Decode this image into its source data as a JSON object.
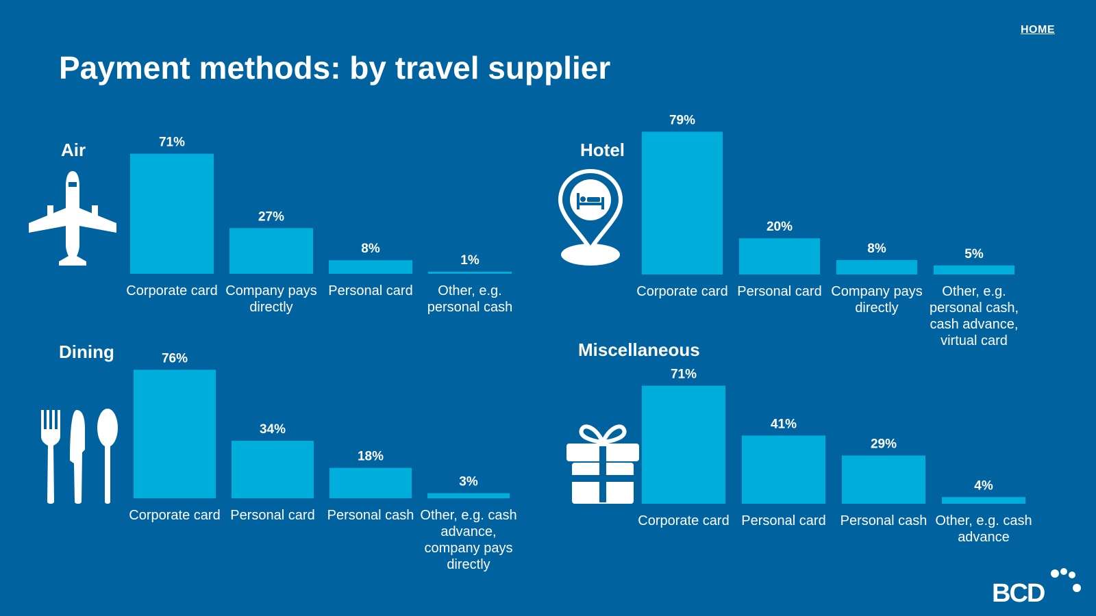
{
  "header": {
    "title": "Payment methods: by travel supplier",
    "home_label": "HOME"
  },
  "colors": {
    "background": "#00629f",
    "bar": "#00aedb",
    "text": "#ffffff"
  },
  "logo": {
    "text": "BCD"
  },
  "chart_data": [
    {
      "type": "bar",
      "title": "Air",
      "icon": "airplane-icon",
      "categories": [
        "Corporate card",
        "Company pays directly",
        "Personal card",
        "Other, e.g. personal cash"
      ],
      "values": [
        71,
        27,
        8,
        1
      ],
      "value_labels": [
        "71%",
        "27%",
        "8%",
        "1%"
      ],
      "ylim": [
        0,
        100
      ]
    },
    {
      "type": "bar",
      "title": "Hotel",
      "icon": "hotel-pin-icon",
      "categories": [
        "Corporate card",
        "Personal card",
        "Company pays directly",
        "Other, e.g. personal cash, cash advance, virtual card"
      ],
      "values": [
        79,
        20,
        8,
        5
      ],
      "value_labels": [
        "79%",
        "20%",
        "8%",
        "5%"
      ],
      "ylim": [
        0,
        100
      ]
    },
    {
      "type": "bar",
      "title": "Dining",
      "icon": "cutlery-icon",
      "categories": [
        "Corporate card",
        "Personal card",
        "Personal cash",
        "Other, e.g. cash advance, company pays directly"
      ],
      "values": [
        76,
        34,
        18,
        3
      ],
      "value_labels": [
        "76%",
        "34%",
        "18%",
        "3%"
      ],
      "ylim": [
        0,
        100
      ]
    },
    {
      "type": "bar",
      "title": "Miscellaneous",
      "icon": "gift-icon",
      "categories": [
        "Corporate card",
        "Personal card",
        "Personal cash",
        "Other, e.g. cash advance"
      ],
      "values": [
        71,
        41,
        29,
        4
      ],
      "value_labels": [
        "71%",
        "41%",
        "29%",
        "4%"
      ],
      "ylim": [
        0,
        100
      ]
    }
  ]
}
